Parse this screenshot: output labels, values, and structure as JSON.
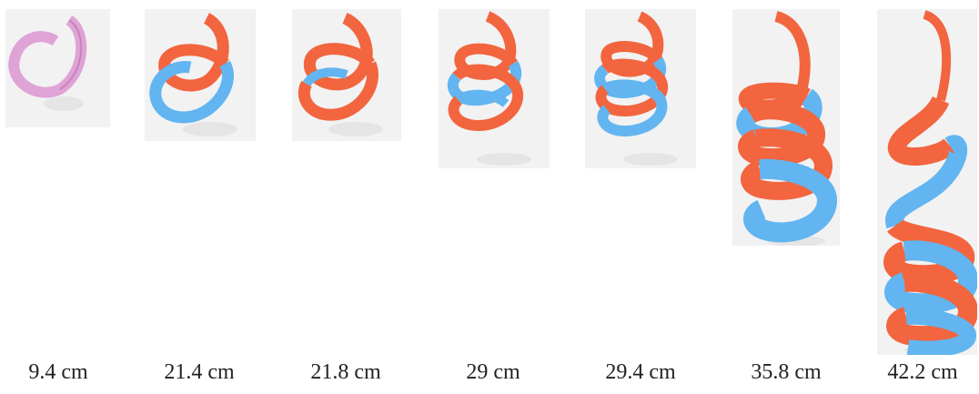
{
  "colors": {
    "orange": "#f2653f",
    "blue": "#62b5f0",
    "pink": "#e0a3d6",
    "orange_dark": "#c94a2b",
    "blue_dark": "#3f8fd0"
  },
  "figures": [
    {
      "label": "9.4 cm"
    },
    {
      "label": "21.4 cm"
    },
    {
      "label": "21.8 cm"
    },
    {
      "label": "29 cm"
    },
    {
      "label": "29.4 cm"
    },
    {
      "label": "35.8 cm"
    },
    {
      "label": "42.2 cm"
    }
  ]
}
